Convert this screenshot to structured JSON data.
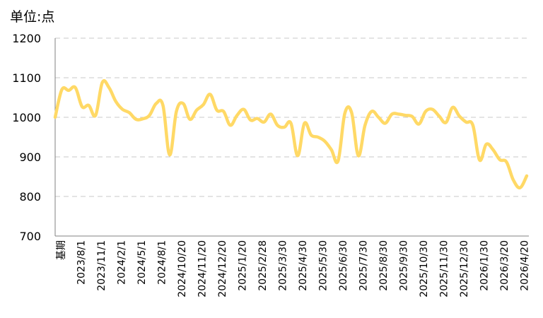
{
  "chart_data": {
    "type": "line",
    "unit_label": "单位:点",
    "ylim": [
      700,
      1200
    ],
    "yticks": [
      700,
      800,
      900,
      1000,
      1100,
      1200
    ],
    "grid": true,
    "x_tick_labels": [
      "基期",
      "2023/8/1",
      "2023/11/1",
      "2024/2/1",
      "2024/5/1",
      "2024/8/1",
      "2024/10/20",
      "2024/11/20",
      "2024/12/20",
      "2025/1/20",
      "2025/2/28",
      "2025/3/30",
      "2025/4/30",
      "2025/5/30",
      "2025/6/30",
      "2025/7/30",
      "2025/8/30",
      "2025/9/30",
      "2025/10/30",
      "2025/11/30",
      "2025/12/30",
      "2026/1/30",
      "2026/3/20",
      "2026/4/20"
    ],
    "series": [
      {
        "color": "#FFD966",
        "values": [
          1000,
          1070,
          1068,
          1075,
          1027,
          1030,
          1005,
          1088,
          1075,
          1040,
          1020,
          1012,
          995,
          996,
          1005,
          1035,
          1030,
          905,
          1015,
          1035,
          995,
          1018,
          1032,
          1058,
          1018,
          1015,
          980,
          1005,
          1020,
          993,
          997,
          988,
          1008,
          980,
          975,
          985,
          903,
          985,
          955,
          950,
          940,
          918,
          890,
          1010,
          1012,
          903,
          980,
          1015,
          1000,
          985,
          1008,
          1008,
          1005,
          1002,
          983,
          1015,
          1020,
          1003,
          987,
          1025,
          1003,
          988,
          980,
          892,
          932,
          918,
          893,
          887,
          842,
          822,
          852
        ]
      }
    ]
  }
}
